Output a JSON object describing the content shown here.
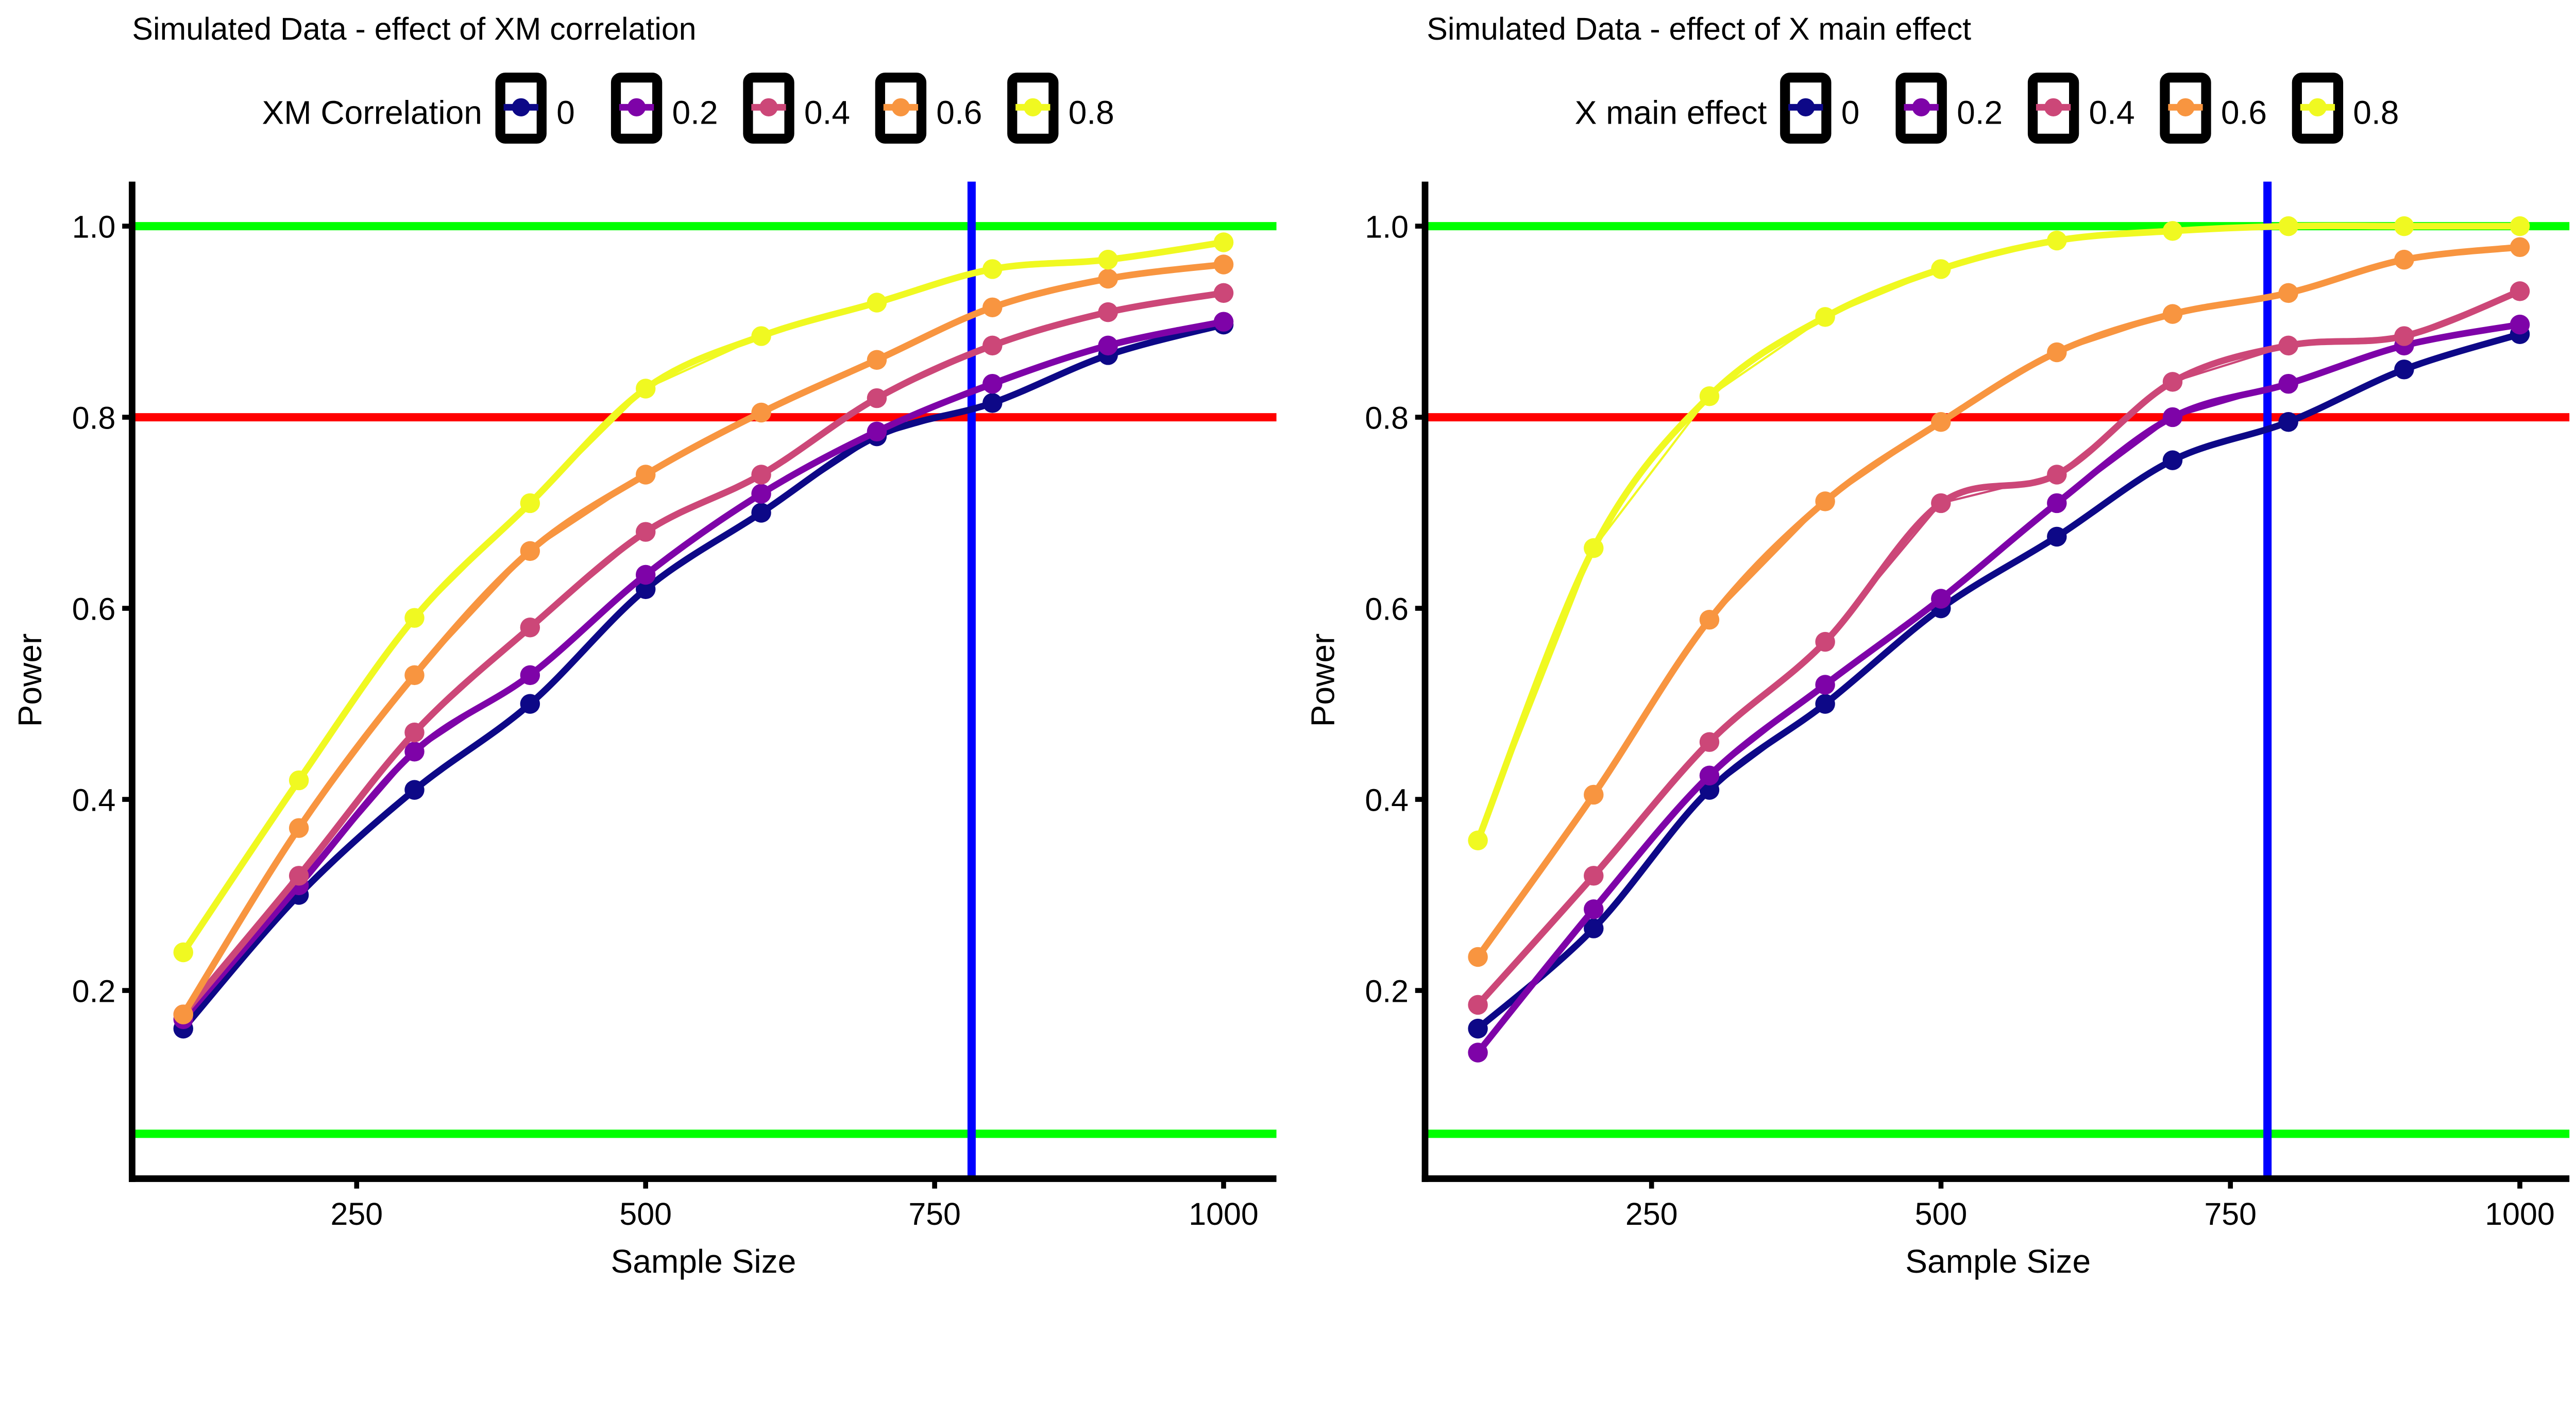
{
  "chart_data": [
    {
      "type": "line",
      "title": "Simulated Data - effect of XM correlation",
      "xlabel": "Sample Size",
      "ylabel": "Power",
      "legend_title": "XM Correlation",
      "legend_position": "top",
      "xlim": [
        55,
        1045
      ],
      "ylim": [
        0.0,
        1.05
      ],
      "xticks": [
        "250",
        "500",
        "750",
        "1000"
      ],
      "xtick_values": [
        250,
        500,
        750,
        1000
      ],
      "yticks": [
        "0.2",
        "0.4",
        "0.6",
        "0.8",
        "1.0"
      ],
      "ytick_values": [
        0.2,
        0.4,
        0.6,
        0.8,
        1.0
      ],
      "grid": false,
      "x": [
        100,
        200,
        300,
        400,
        500,
        600,
        700,
        800,
        900,
        1000
      ],
      "series": [
        {
          "name": "0",
          "color": "#0d0887",
          "values": [
            0.16,
            0.3,
            0.41,
            0.5,
            0.62,
            0.7,
            0.78,
            0.815,
            0.865,
            0.897
          ]
        },
        {
          "name": "0.2",
          "color": "#7e03a8",
          "values": [
            0.17,
            0.31,
            0.45,
            0.53,
            0.635,
            0.72,
            0.785,
            0.835,
            0.875,
            0.9
          ]
        },
        {
          "name": "0.4",
          "color": "#cc4778",
          "values": [
            0.175,
            0.32,
            0.47,
            0.58,
            0.68,
            0.74,
            0.82,
            0.875,
            0.91,
            0.93
          ]
        },
        {
          "name": "0.6",
          "color": "#f89540",
          "values": [
            0.175,
            0.37,
            0.53,
            0.66,
            0.74,
            0.805,
            0.86,
            0.915,
            0.945,
            0.96
          ]
        },
        {
          "name": "0.8",
          "color": "#f0f921",
          "values": [
            0.24,
            0.42,
            0.59,
            0.71,
            0.83,
            0.885,
            0.92,
            0.955,
            0.965,
            0.983
          ]
        }
      ],
      "reference_lines": [
        {
          "orientation": "horizontal",
          "value": 1.0,
          "color": "#00ff00"
        },
        {
          "orientation": "horizontal",
          "value": 0.8,
          "color": "#ff0000"
        },
        {
          "orientation": "horizontal",
          "value": 0.05,
          "color": "#00ff00"
        },
        {
          "orientation": "vertical",
          "value": 782,
          "color": "#0000ff"
        }
      ]
    },
    {
      "type": "line",
      "title": "Simulated Data - effect of X main effect",
      "xlabel": "Sample Size",
      "ylabel": "Power",
      "legend_title": "X main effect",
      "legend_position": "top",
      "xlim": [
        55,
        1045
      ],
      "ylim": [
        0.0,
        1.05
      ],
      "xticks": [
        "250",
        "500",
        "750",
        "1000"
      ],
      "xtick_values": [
        250,
        500,
        750,
        1000
      ],
      "yticks": [
        "0.2",
        "0.4",
        "0.6",
        "0.8",
        "1.0"
      ],
      "ytick_values": [
        0.2,
        0.4,
        0.6,
        0.8,
        1.0
      ],
      "grid": false,
      "x": [
        100,
        200,
        300,
        400,
        500,
        600,
        700,
        800,
        900,
        1000
      ],
      "series": [
        {
          "name": "0",
          "color": "#0d0887",
          "values": [
            0.16,
            0.265,
            0.41,
            0.5,
            0.6,
            0.675,
            0.755,
            0.795,
            0.85,
            0.887
          ]
        },
        {
          "name": "0.2",
          "color": "#7e03a8",
          "values": [
            0.135,
            0.285,
            0.425,
            0.52,
            0.61,
            0.71,
            0.8,
            0.835,
            0.875,
            0.897
          ]
        },
        {
          "name": "0.4",
          "color": "#cc4778",
          "values": [
            0.185,
            0.32,
            0.46,
            0.565,
            0.71,
            0.74,
            0.837,
            0.875,
            0.885,
            0.932
          ]
        },
        {
          "name": "0.6",
          "color": "#f89540",
          "values": [
            0.235,
            0.405,
            0.588,
            0.712,
            0.795,
            0.868,
            0.908,
            0.93,
            0.965,
            0.978
          ]
        },
        {
          "name": "0.8",
          "color": "#f0f921",
          "values": [
            0.357,
            0.663,
            0.822,
            0.905,
            0.955,
            0.985,
            0.995,
            1.0,
            1.0,
            1.0
          ]
        }
      ],
      "reference_lines": [
        {
          "orientation": "horizontal",
          "value": 1.0,
          "color": "#00ff00"
        },
        {
          "orientation": "horizontal",
          "value": 0.8,
          "color": "#ff0000"
        },
        {
          "orientation": "horizontal",
          "value": 0.05,
          "color": "#00ff00"
        },
        {
          "orientation": "vertical",
          "value": 782,
          "color": "#0000ff"
        }
      ]
    }
  ]
}
